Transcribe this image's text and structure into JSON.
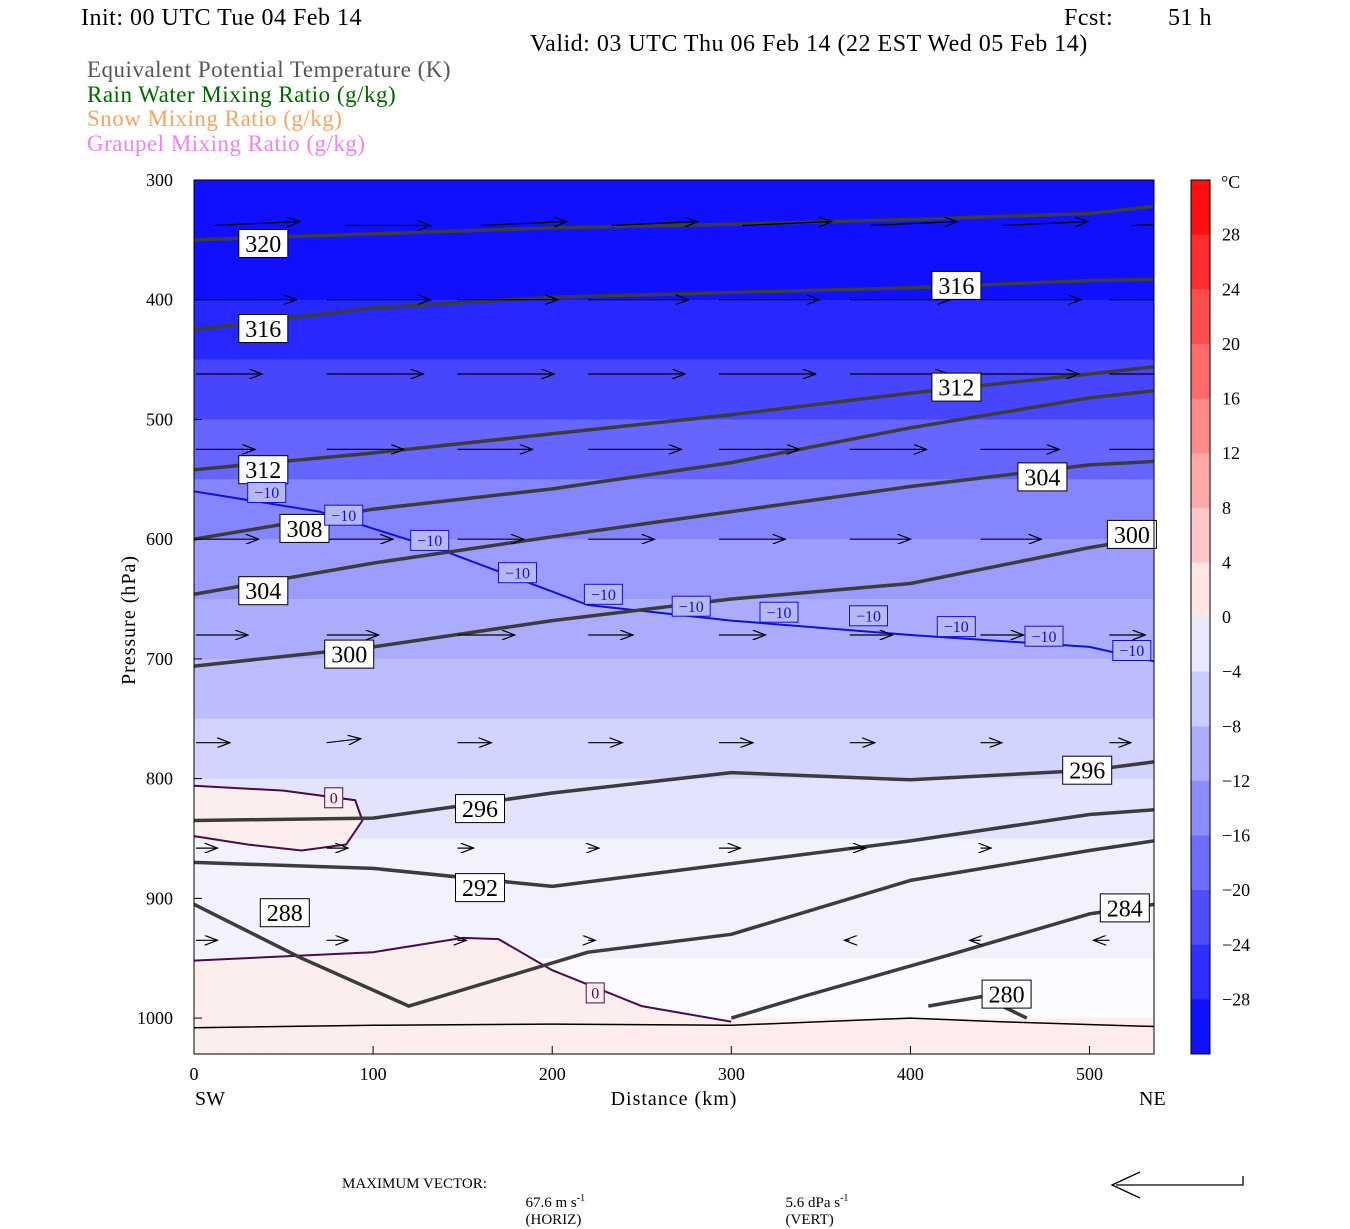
{
  "header": {
    "init": "Init: 00 UTC Tue 04 Feb 14",
    "fcst_label": "Fcst:",
    "fcst_value": "51 h",
    "valid": "Valid: 03 UTC Thu 06 Feb 14 (22 EST Wed 05 Feb 14)"
  },
  "variables": [
    {
      "label": "Equivalent Potential Temperature (K)",
      "color": "#555555"
    },
    {
      "label": "Rain Water Mixing Ratio (g/kg)",
      "color": "#006400"
    },
    {
      "label": "Snow Mixing Ratio (g/kg)",
      "color": "#f4a460"
    },
    {
      "label": "Graupel Mixing Ratio (g/kg)",
      "color": "#ee82ee"
    }
  ],
  "chart_data": {
    "type": "cross-section",
    "xlabel": "Distance (km)",
    "ylabel": "Pressure (hPa)",
    "xlim": [
      0,
      536
    ],
    "ylim": [
      1030,
      300
    ],
    "y_log_scale": false,
    "x_ticks": [
      0,
      100,
      200,
      300,
      400,
      500
    ],
    "y_ticks": [
      300,
      400,
      500,
      600,
      700,
      800,
      900,
      1000
    ],
    "x_end_labels": {
      "left": "SW",
      "right": "NE"
    },
    "colorbar": {
      "unit": "°C",
      "tick_labels": [
        "28",
        "24",
        "20",
        "16",
        "12",
        "8",
        "4",
        "0",
        "−4",
        "−8",
        "−12",
        "−16",
        "−20",
        "−24",
        "−28"
      ],
      "range": [
        -32,
        32
      ],
      "step": 4
    },
    "temperature_fill_bands_c": [
      {
        "p": 300,
        "t": -30
      },
      {
        "p": 400,
        "t": -27
      },
      {
        "p": 450,
        "t": -23
      },
      {
        "p": 500,
        "t": -19
      },
      {
        "p": 550,
        "t": -15
      },
      {
        "p": 600,
        "t": -12
      },
      {
        "p": 650,
        "t": -10
      },
      {
        "p": 700,
        "t": -8
      },
      {
        "p": 750,
        "t": -5
      },
      {
        "p": 800,
        "t": -3
      },
      {
        "p": 850,
        "t": -1
      },
      {
        "p": 900,
        "t": -1
      },
      {
        "p": 950,
        "t": 0
      },
      {
        "p": 1000,
        "t": 1
      },
      {
        "p": 1030,
        "t": 1
      }
    ],
    "theta_e_contours": [
      {
        "value": "320",
        "points": [
          [
            0,
            350
          ],
          [
            100,
            345
          ],
          [
            200,
            340
          ],
          [
            300,
            337
          ],
          [
            400,
            333
          ],
          [
            500,
            328
          ],
          [
            536,
            322
          ]
        ],
        "labels": [
          [
            25,
            353
          ]
        ]
      },
      {
        "value": "316",
        "points": [
          [
            0,
            425
          ],
          [
            100,
            407
          ],
          [
            200,
            398
          ],
          [
            300,
            394
          ],
          [
            400,
            390
          ],
          [
            500,
            384
          ],
          [
            536,
            383
          ]
        ],
        "labels": [
          [
            25,
            424
          ],
          [
            412,
            388
          ]
        ]
      },
      {
        "value": "312",
        "points": [
          [
            0,
            542
          ],
          [
            100,
            528
          ],
          [
            200,
            512
          ],
          [
            300,
            496
          ],
          [
            400,
            478
          ],
          [
            500,
            462
          ],
          [
            536,
            456
          ]
        ],
        "labels": [
          [
            25,
            542
          ],
          [
            412,
            473
          ]
        ]
      },
      {
        "value": "308",
        "points": [
          [
            0,
            600
          ],
          [
            100,
            575
          ],
          [
            200,
            558
          ],
          [
            300,
            536
          ],
          [
            400,
            507
          ],
          [
            500,
            482
          ],
          [
            536,
            476
          ]
        ],
        "labels": [
          [
            48,
            591
          ]
        ]
      },
      {
        "value": "304",
        "points": [
          [
            0,
            646
          ],
          [
            100,
            620
          ],
          [
            200,
            598
          ],
          [
            300,
            577
          ],
          [
            400,
            556
          ],
          [
            500,
            538
          ],
          [
            536,
            535
          ]
        ],
        "labels": [
          [
            25,
            643
          ],
          [
            460,
            548
          ]
        ]
      },
      {
        "value": "300",
        "points": [
          [
            0,
            706
          ],
          [
            100,
            690
          ],
          [
            200,
            668
          ],
          [
            300,
            650
          ],
          [
            400,
            637
          ],
          [
            500,
            607
          ],
          [
            536,
            598
          ]
        ],
        "labels": [
          [
            73,
            696
          ],
          [
            510,
            596
          ]
        ]
      },
      {
        "value": "296",
        "points": [
          [
            0,
            835
          ],
          [
            100,
            833
          ],
          [
            200,
            812
          ],
          [
            300,
            795
          ],
          [
            400,
            801
          ],
          [
            500,
            793
          ],
          [
            536,
            786
          ]
        ],
        "labels": [
          [
            146,
            825
          ],
          [
            485,
            793
          ]
        ]
      },
      {
        "value": "292",
        "points": [
          [
            0,
            870
          ],
          [
            100,
            875
          ],
          [
            200,
            890
          ],
          [
            300,
            871
          ],
          [
            400,
            852
          ],
          [
            500,
            830
          ],
          [
            536,
            826
          ]
        ],
        "labels": [
          [
            146,
            891
          ]
        ]
      },
      {
        "value": "288",
        "points": [
          [
            0,
            905
          ],
          [
            60,
            950
          ],
          [
            120,
            990
          ],
          [
            220,
            945
          ],
          [
            300,
            930
          ],
          [
            400,
            885
          ],
          [
            500,
            860
          ],
          [
            536,
            852
          ]
        ],
        "labels": [
          [
            37,
            912
          ]
        ]
      },
      {
        "value": "284",
        "points": [
          [
            300,
            1000
          ],
          [
            340,
            982
          ],
          [
            420,
            948
          ],
          [
            500,
            913
          ],
          [
            536,
            905
          ]
        ],
        "labels": [
          [
            506,
            908
          ]
        ]
      },
      {
        "value": "280",
        "points": [
          [
            410,
            990
          ],
          [
            440,
            982
          ],
          [
            465,
            1000
          ]
        ],
        "labels": [
          [
            440,
            980
          ]
        ]
      }
    ],
    "isotherm_minus10": {
      "value": "−10",
      "points": [
        [
          0,
          560
        ],
        [
          70,
          577
        ],
        [
          140,
          610
        ],
        [
          220,
          655
        ],
        [
          300,
          668
        ],
        [
          400,
          680
        ],
        [
          500,
          690
        ],
        [
          536,
          702
        ]
      ],
      "labels": [
        [
          30,
          561
        ],
        [
          73,
          580
        ],
        [
          121,
          601
        ],
        [
          170,
          628
        ],
        [
          218,
          646
        ],
        [
          267,
          656
        ],
        [
          316,
          661
        ],
        [
          366,
          664
        ],
        [
          415,
          673
        ],
        [
          464,
          681
        ],
        [
          513,
          693
        ]
      ]
    },
    "isotherm_zero": {
      "value": "0",
      "contours": [
        [
          [
            0,
            806
          ],
          [
            50,
            810
          ],
          [
            90,
            818
          ],
          [
            94,
            835
          ],
          [
            85,
            855
          ],
          [
            60,
            860
          ],
          [
            30,
            855
          ],
          [
            0,
            848
          ]
        ],
        [
          [
            0,
            952
          ],
          [
            100,
            945
          ],
          [
            150,
            933
          ],
          [
            170,
            934
          ],
          [
            200,
            960
          ],
          [
            250,
            990
          ],
          [
            300,
            1003
          ]
        ]
      ],
      "labels": [
        [
          73,
          816
        ],
        [
          219,
          979
        ]
      ]
    },
    "wind_vectors": [
      [
        10,
        338,
        48,
        -0.5
      ],
      [
        83,
        338,
        48,
        0
      ],
      [
        159,
        338,
        48,
        -0.5
      ],
      [
        232,
        338,
        48,
        -0.5
      ],
      [
        305,
        338,
        50,
        -0.5
      ],
      [
        377,
        338,
        48,
        -0.5
      ],
      [
        450,
        338,
        48,
        -0.5
      ],
      [
        523,
        338,
        48,
        -0.5
      ],
      [
        0,
        400,
        56,
        0
      ],
      [
        73,
        400,
        58,
        0
      ],
      [
        146,
        400,
        56,
        0
      ],
      [
        219,
        400,
        56,
        0
      ],
      [
        292,
        400,
        56,
        0
      ],
      [
        365,
        400,
        56,
        0
      ],
      [
        438,
        400,
        56,
        0
      ],
      [
        510,
        400,
        56,
        0
      ],
      [
        0,
        462,
        37,
        0
      ],
      [
        73,
        462,
        54,
        0
      ],
      [
        146,
        462,
        54,
        0
      ],
      [
        219,
        462,
        54,
        0
      ],
      [
        292,
        462,
        54,
        0
      ],
      [
        365,
        462,
        55,
        0
      ],
      [
        438,
        462,
        55,
        0
      ],
      [
        510,
        462,
        55,
        0
      ],
      [
        0,
        525,
        33,
        0
      ],
      [
        73,
        525,
        43,
        0
      ],
      [
        146,
        525,
        42,
        0
      ],
      [
        219,
        525,
        52,
        0
      ],
      [
        292,
        525,
        45,
        0
      ],
      [
        365,
        525,
        43,
        0
      ],
      [
        438,
        525,
        44,
        0
      ],
      [
        510,
        525,
        42,
        0
      ],
      [
        0,
        600,
        35,
        0
      ],
      [
        73,
        600,
        37,
        0
      ],
      [
        146,
        600,
        37,
        0
      ],
      [
        219,
        600,
        37,
        0
      ],
      [
        292,
        600,
        37,
        0
      ],
      [
        365,
        600,
        34,
        0
      ],
      [
        438,
        600,
        34,
        0
      ],
      [
        510,
        600,
        30,
        0
      ],
      [
        0,
        680,
        29,
        0
      ],
      [
        73,
        680,
        29,
        0
      ],
      [
        146,
        680,
        32,
        0
      ],
      [
        219,
        680,
        25,
        0
      ],
      [
        292,
        680,
        26,
        0
      ],
      [
        365,
        680,
        24,
        0
      ],
      [
        438,
        680,
        24,
        0
      ],
      [
        510,
        680,
        20,
        0
      ],
      [
        0,
        770,
        19,
        0
      ],
      [
        73,
        770,
        19,
        -0.5
      ],
      [
        146,
        770,
        19,
        0
      ],
      [
        219,
        770,
        19,
        0
      ],
      [
        292,
        770,
        19,
        0
      ],
      [
        365,
        770,
        14,
        0
      ],
      [
        438,
        770,
        12,
        0
      ],
      [
        510,
        770,
        12,
        0
      ],
      [
        0,
        858,
        12,
        0
      ],
      [
        73,
        858,
        12,
        0
      ],
      [
        146,
        858,
        9,
        0
      ],
      [
        219,
        858,
        6,
        0
      ],
      [
        292,
        858,
        12,
        0
      ],
      [
        365,
        858,
        9,
        0
      ],
      [
        438,
        858,
        6,
        0
      ],
      [
        510,
        858,
        2,
        0
      ],
      [
        0,
        935,
        12,
        0
      ],
      [
        73,
        935,
        12,
        0
      ],
      [
        146,
        935,
        5,
        0
      ],
      [
        219,
        935,
        4,
        0
      ],
      [
        292,
        935,
        2,
        0
      ],
      [
        365,
        935,
        -3,
        0
      ],
      [
        438,
        935,
        -6,
        0
      ],
      [
        510,
        935,
        -9,
        0
      ]
    ],
    "surface_line": [
      [
        0,
        1008
      ],
      [
        100,
        1006
      ],
      [
        200,
        1005
      ],
      [
        300,
        1006
      ],
      [
        400,
        1000
      ],
      [
        450,
        1003
      ],
      [
        536,
        1007
      ]
    ]
  },
  "footer": {
    "max_vector_label": "MAXIMUM VECTOR:",
    "horiz_value": "67.6 m s",
    "horiz_unit": "(HORIZ)",
    "vert_value": "5.6 dPa s",
    "vert_unit": "(VERT)",
    "exponent": "-1"
  }
}
